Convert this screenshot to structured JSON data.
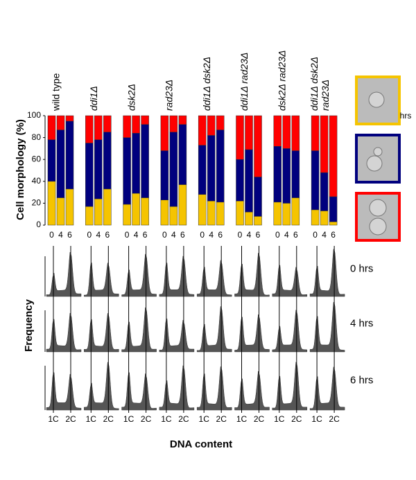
{
  "chart_data": {
    "type": "stacked-bar",
    "y_label": "Cell morphology (%)",
    "groups": [
      [
        "wild type"
      ],
      [
        "ddi1Δ"
      ],
      [
        "dsk2Δ"
      ],
      [
        "rad23Δ"
      ],
      [
        "ddi1Δ dsk2Δ"
      ],
      [
        "ddi1Δ rad23Δ"
      ],
      [
        "dsk2Δ rad23Δ"
      ],
      [
        "ddi1Δ dsk2Δ",
        "rad23Δ"
      ]
    ],
    "group_label_italic": [
      false,
      true,
      true,
      true,
      true,
      true,
      true,
      true
    ],
    "categories": [
      "0",
      "4",
      "6",
      "0",
      "4",
      "6",
      "0",
      "4",
      "6",
      "0",
      "4",
      "6",
      "0",
      "4",
      "6",
      "0",
      "4",
      "6",
      "0",
      "4",
      "6",
      "0",
      "4",
      "6"
    ],
    "x_unit": "hrs",
    "series": [
      {
        "color": "#f5c400",
        "values": [
          40,
          25,
          33,
          17,
          24,
          33,
          19,
          29,
          25,
          23,
          17,
          37,
          28,
          22,
          21,
          22,
          12,
          8,
          21,
          20,
          25,
          14,
          13,
          3
        ]
      },
      {
        "color": "#00007e",
        "values": [
          38,
          62,
          62,
          58,
          54,
          52,
          61,
          55,
          67,
          45,
          68,
          55,
          45,
          60,
          66,
          38,
          57,
          36,
          51,
          50,
          43,
          54,
          35,
          23
        ]
      },
      {
        "color": "#ff0000",
        "values": [
          22,
          13,
          5,
          25,
          22,
          15,
          20,
          16,
          8,
          32,
          15,
          8,
          27,
          18,
          13,
          40,
          31,
          56,
          28,
          30,
          32,
          32,
          52,
          74
        ]
      }
    ],
    "ylim": [
      0,
      100
    ],
    "yticks": [
      0,
      20,
      40,
      60,
      80,
      100
    ]
  },
  "flow_panel": {
    "y_label": "Frequency",
    "x_label": "DNA content",
    "rows": [
      "0 hrs",
      "4 hrs",
      "6 hrs"
    ],
    "x_ticks": [
      "1C",
      "2C"
    ]
  }
}
